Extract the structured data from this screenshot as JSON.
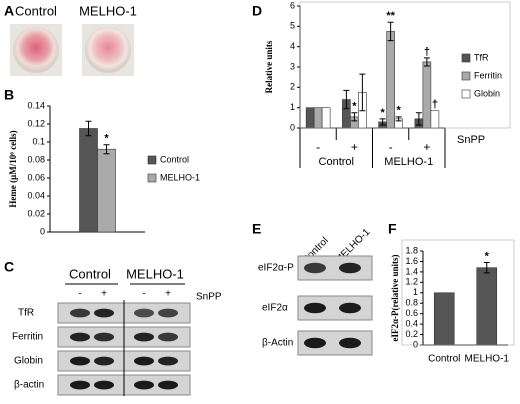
{
  "panel_labels": [
    "A",
    "B",
    "C",
    "D",
    "E",
    "F"
  ],
  "panel_a": {
    "labels": [
      "Control",
      "MELHO-1"
    ]
  },
  "chart_data": [
    {
      "type": "bar",
      "ylabel": "Heme (µM/10⁶ cells)",
      "categories": [
        null
      ],
      "series": [
        {
          "name": "Control",
          "color": "#555555",
          "values": [
            0.115
          ],
          "errors": [
            0.008
          ],
          "significance": [
            null
          ]
        },
        {
          "name": "MELHO-1",
          "color": "#aaaaaa",
          "values": [
            0.092
          ],
          "errors": [
            0.005
          ],
          "significance": [
            "*"
          ]
        }
      ],
      "ylim": [
        0,
        0.14
      ],
      "yticks": [
        0,
        0.02,
        0.04,
        0.06,
        0.08,
        0.1,
        0.12,
        0.14
      ]
    },
    {
      "type": "bar",
      "ylabel": "Relative units",
      "categories": [
        "-",
        "+",
        "-",
        "+"
      ],
      "group_labels": [
        "Control",
        "MELHO-1"
      ],
      "xlabel": "SnPP",
      "series": [
        {
          "name": "TfR",
          "color": "#555555",
          "values": [
            1,
            1.4,
            0.3,
            0.45
          ],
          "errors": [
            0,
            0.45,
            0.15,
            0.3
          ],
          "significance": [
            null,
            null,
            "*",
            null
          ]
        },
        {
          "name": "Ferritin",
          "color": "#aaaaaa",
          "values": [
            1,
            0.55,
            4.75,
            3.25
          ],
          "errors": [
            0,
            0.2,
            0.45,
            0.2
          ],
          "significance": [
            null,
            "*",
            "**",
            "†"
          ]
        },
        {
          "name": "Globin",
          "color": "#ffffff",
          "values": [
            1,
            1.75,
            0.45,
            0.85
          ],
          "errors": [
            0,
            0.9,
            0.1,
            0
          ],
          "significance": [
            null,
            null,
            "*",
            "†"
          ]
        }
      ],
      "ylim": [
        0,
        6
      ],
      "yticks": [
        0,
        1,
        2,
        3,
        4,
        5,
        6
      ]
    },
    {
      "type": "bar",
      "ylabel": "eIF2α-P(relative units)",
      "categories": [
        "Control",
        "MELHO-1"
      ],
      "color": "#555555",
      "values": [
        1,
        1.48
      ],
      "errors": [
        0,
        0.1
      ],
      "significance": [
        null,
        "*"
      ],
      "ylim": [
        0,
        1.8
      ],
      "yticks": [
        0,
        0.2,
        0.4,
        0.6,
        0.8,
        1,
        1.2,
        1.4,
        1.6,
        1.8
      ]
    }
  ],
  "panel_c": {
    "groups": [
      "Control",
      "MELHO-1"
    ],
    "signs": [
      "-",
      "+",
      "-",
      "+"
    ],
    "treatment": "SnPP",
    "rows": [
      "TfR",
      "Ferritin",
      "Globin",
      "β-actin"
    ]
  },
  "panel_e": {
    "columns": [
      "Control",
      "MELHO-1"
    ],
    "rows": [
      "eIF2α-P",
      "eIF2α",
      "β-Actin"
    ]
  }
}
